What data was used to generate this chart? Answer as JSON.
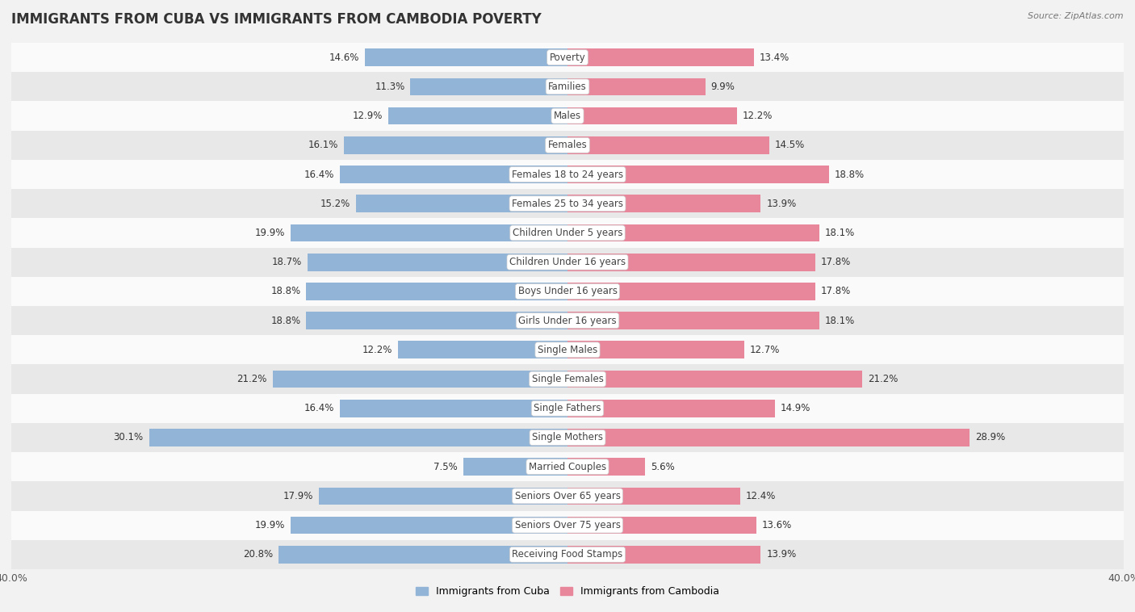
{
  "title": "IMMIGRANTS FROM CUBA VS IMMIGRANTS FROM CAMBODIA POVERTY",
  "source": "Source: ZipAtlas.com",
  "categories": [
    "Poverty",
    "Families",
    "Males",
    "Females",
    "Females 18 to 24 years",
    "Females 25 to 34 years",
    "Children Under 5 years",
    "Children Under 16 years",
    "Boys Under 16 years",
    "Girls Under 16 years",
    "Single Males",
    "Single Females",
    "Single Fathers",
    "Single Mothers",
    "Married Couples",
    "Seniors Over 65 years",
    "Seniors Over 75 years",
    "Receiving Food Stamps"
  ],
  "cuba_values": [
    14.6,
    11.3,
    12.9,
    16.1,
    16.4,
    15.2,
    19.9,
    18.7,
    18.8,
    18.8,
    12.2,
    21.2,
    16.4,
    30.1,
    7.5,
    17.9,
    19.9,
    20.8
  ],
  "cambodia_values": [
    13.4,
    9.9,
    12.2,
    14.5,
    18.8,
    13.9,
    18.1,
    17.8,
    17.8,
    18.1,
    12.7,
    21.2,
    14.9,
    28.9,
    5.6,
    12.4,
    13.6,
    13.9
  ],
  "cuba_color": "#92b4d7",
  "cambodia_color": "#e8879c",
  "background_color": "#f2f2f2",
  "row_color_light": "#fafafa",
  "row_color_dark": "#e8e8e8",
  "axis_limit": 40.0,
  "bar_height": 0.6,
  "title_fontsize": 12,
  "label_fontsize": 8.5,
  "value_fontsize": 8.5,
  "legend_fontsize": 9
}
